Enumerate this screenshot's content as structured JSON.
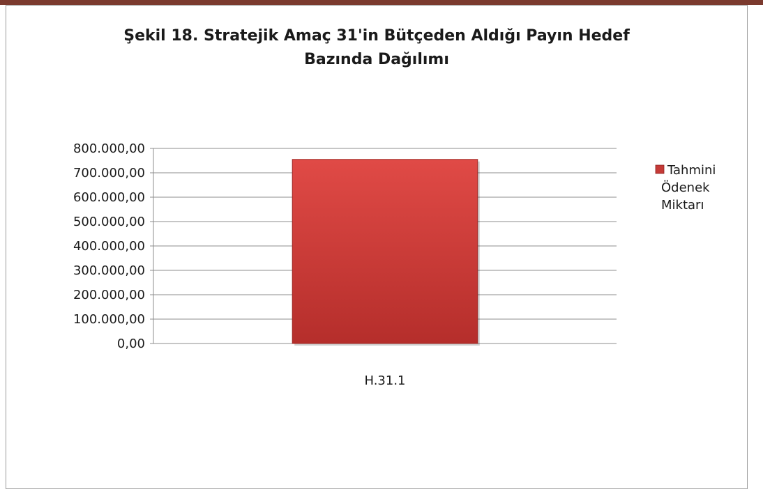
{
  "chart_data": {
    "type": "bar",
    "title_lines": [
      "Şekil 18. Stratejik Amaç 31'in Bütçeden Aldığı Payın Hedef",
      "Bazında Dağılımı"
    ],
    "categories": [
      "H.31.1"
    ],
    "series": [
      {
        "name": "Tahmini Ödenek Miktarı",
        "values": [
          755000
        ],
        "color": "#c53a37"
      }
    ],
    "legend_lines": [
      "Tahmini",
      "Ödenek",
      "Miktarı"
    ],
    "legend_position": "right",
    "yticks": [
      "0,00",
      "100.000,00",
      "200.000,00",
      "300.000,00",
      "400.000,00",
      "500.000,00",
      "600.000,00",
      "700.000,00",
      "800.000,00"
    ],
    "ylim": [
      0,
      800000
    ],
    "grid": true
  }
}
